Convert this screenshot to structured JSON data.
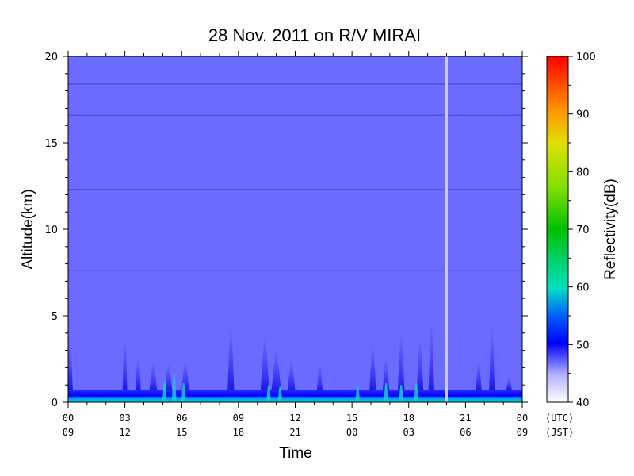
{
  "chart_data": {
    "type": "heatmap",
    "title": "28 Nov. 2011  on R/V MIRAI",
    "xlabel": "Time",
    "ylabel": "Altitude(km)",
    "colorbar_label": "Reflectivity(dB)",
    "x_range_hours_utc": [
      0,
      24
    ],
    "ylim": [
      0,
      20
    ],
    "y_ticks": [
      "0",
      "5",
      "10",
      "15",
      "20"
    ],
    "utc_ticks": [
      "00",
      "03",
      "06",
      "09",
      "12",
      "15",
      "18",
      "21",
      "00"
    ],
    "jst_ticks": [
      "09",
      "12",
      "15",
      "18",
      "21",
      "00",
      "03",
      "06",
      "09"
    ],
    "zone_labels": [
      "(UTC)",
      "(JST)"
    ],
    "colorbar_range": [
      40,
      100
    ],
    "colorbar_ticks": [
      "40",
      "50",
      "60",
      "70",
      "80",
      "90",
      "100"
    ],
    "background_reflectivity_db": 46,
    "horizontal_artifact_lines_km": [
      7.6,
      12.3,
      16.6,
      18.4
    ],
    "data_gap_hour_utc": 20.0,
    "low_level_layer": {
      "top_km": 0.7,
      "core_top_km": 0.3,
      "color_core": "#00e0b0",
      "color_layer": "#1010ff"
    },
    "cloud_echoes": [
      {
        "hour": 0.1,
        "top_km": 3.5,
        "width_h": 0.3
      },
      {
        "hour": 3.0,
        "top_km": 3.6,
        "width_h": 0.25
      },
      {
        "hour": 3.7,
        "top_km": 2.6,
        "width_h": 0.3
      },
      {
        "hour": 4.5,
        "top_km": 2.3,
        "width_h": 0.4
      },
      {
        "hour": 5.3,
        "top_km": 2.2,
        "width_h": 0.4
      },
      {
        "hour": 6.2,
        "top_km": 2.4,
        "width_h": 0.4
      },
      {
        "hour": 8.6,
        "top_km": 4.3,
        "width_h": 0.35
      },
      {
        "hour": 10.4,
        "top_km": 3.8,
        "width_h": 0.45
      },
      {
        "hour": 11.0,
        "top_km": 3.0,
        "width_h": 0.5
      },
      {
        "hour": 11.8,
        "top_km": 2.4,
        "width_h": 0.4
      },
      {
        "hour": 13.3,
        "top_km": 2.2,
        "width_h": 0.3
      },
      {
        "hour": 16.1,
        "top_km": 3.3,
        "width_h": 0.35
      },
      {
        "hour": 16.8,
        "top_km": 2.6,
        "width_h": 0.35
      },
      {
        "hour": 17.6,
        "top_km": 3.9,
        "width_h": 0.35
      },
      {
        "hour": 18.6,
        "top_km": 3.6,
        "width_h": 0.35
      },
      {
        "hour": 19.2,
        "top_km": 4.5,
        "width_h": 0.3
      },
      {
        "hour": 21.7,
        "top_km": 2.4,
        "width_h": 0.3
      },
      {
        "hour": 22.4,
        "top_km": 4.3,
        "width_h": 0.3
      },
      {
        "hour": 23.3,
        "top_km": 1.5,
        "width_h": 0.3
      }
    ],
    "near_surface_cores": [
      {
        "hour": 5.1,
        "top_km": 1.2
      },
      {
        "hour": 5.6,
        "top_km": 1.6
      },
      {
        "hour": 6.1,
        "top_km": 1.1
      },
      {
        "hour": 10.6,
        "top_km": 1.0
      },
      {
        "hour": 11.2,
        "top_km": 0.9
      },
      {
        "hour": 15.3,
        "top_km": 0.9
      },
      {
        "hour": 16.8,
        "top_km": 1.1
      },
      {
        "hour": 17.6,
        "top_km": 1.0
      },
      {
        "hour": 18.4,
        "top_km": 1.1
      }
    ],
    "colors": {
      "background": "#6b6bff",
      "artifact_line": "#4a4ad8",
      "gap": "#c8c8e0",
      "echo": "#3232f0",
      "core": "#20c8d0"
    }
  }
}
